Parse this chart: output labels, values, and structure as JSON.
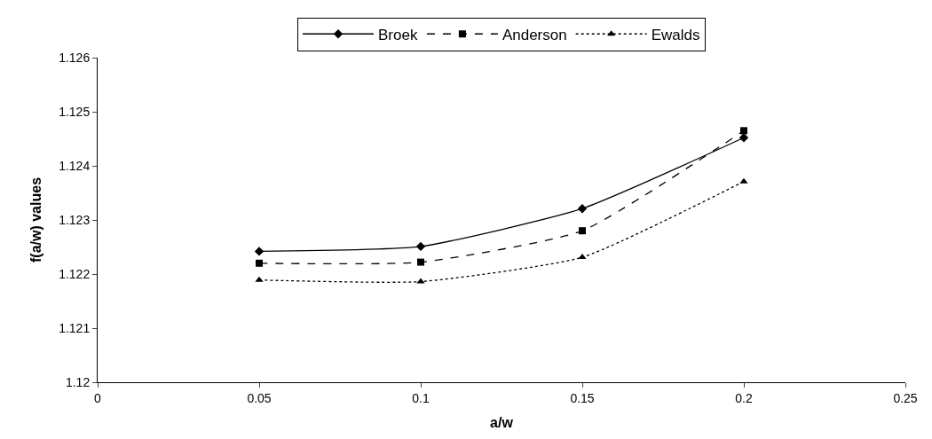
{
  "chart_data": {
    "type": "line",
    "xlabel": "a/w",
    "ylabel": "f(a/w) values",
    "x": [
      0.05,
      0.1,
      0.15,
      0.2
    ],
    "series": [
      {
        "name": "Broek",
        "color": "#000000",
        "values": [
          1.12242,
          1.12251,
          1.12321,
          1.12452
        ],
        "marker": "diamond",
        "line_style": "solid"
      },
      {
        "name": "Anderson",
        "color": "#000000",
        "values": [
          1.1222,
          1.12222,
          1.1228,
          1.12465
        ],
        "marker": "square",
        "line_style": "dashed"
      },
      {
        "name": "Ewalds",
        "color": "#000000",
        "values": [
          1.12189,
          1.12186,
          1.12231,
          1.12371
        ],
        "marker": "triangle",
        "line_style": "dotted"
      }
    ],
    "xlim": [
      0,
      0.25
    ],
    "xticks": [
      0,
      0.05,
      0.1,
      0.15,
      0.2,
      0.25
    ],
    "ylim": [
      1.12,
      1.126
    ],
    "yticks": [
      1.12,
      1.121,
      1.122,
      1.123,
      1.124,
      1.125,
      1.126
    ],
    "grid": false,
    "legend": "top"
  }
}
